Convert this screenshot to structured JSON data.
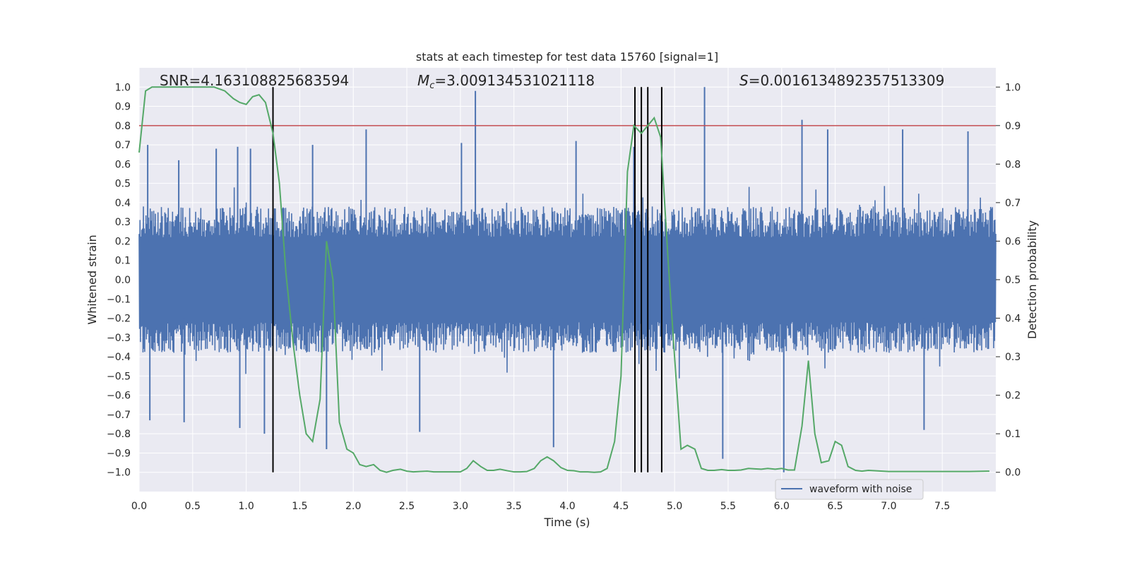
{
  "chart_data": {
    "type": "line",
    "title": "stats at each timestep for test data 15760 [signal=1]",
    "xlabel": "Time (s)",
    "ylabel_left": "Whitened strain",
    "ylabel_right": "Detection probability",
    "xlim": [
      0.0,
      8.0
    ],
    "ylim_left": [
      -1.1,
      1.1
    ],
    "ylim_right": [
      -0.05,
      1.05
    ],
    "x_ticks": [
      "0.0",
      "0.5",
      "1.0",
      "1.5",
      "2.0",
      "2.5",
      "3.0",
      "3.5",
      "4.0",
      "4.5",
      "5.0",
      "5.5",
      "6.0",
      "6.5",
      "7.0",
      "7.5"
    ],
    "y_ticks_left": [
      "1.0",
      "0.9",
      "0.8",
      "0.7",
      "0.6",
      "0.5",
      "0.4",
      "0.3",
      "0.2",
      "0.1",
      "0.0",
      "−0.1",
      "−0.2",
      "−0.3",
      "−0.4",
      "−0.5",
      "−0.6",
      "−0.7",
      "−0.8",
      "−0.9",
      "−1.0"
    ],
    "y_ticks_right": [
      "1.0",
      "0.9",
      "0.8",
      "0.7",
      "0.6",
      "0.5",
      "0.4",
      "0.3",
      "0.2",
      "0.1",
      "0.0"
    ],
    "grid": true,
    "legend_placement": "lower-right",
    "annotations": {
      "snr": "SNR=4.163108825683594",
      "mc_symbol": "M",
      "mc_sub": "c",
      "mc_value": "=3.009134531021118",
      "s_symbol": "S",
      "s_value": "=0.0016134892357513309"
    },
    "series": [
      {
        "name": "waveform with noise",
        "color": "#4c72b0",
        "description_values": "dense noisy strain signal, mostly within ±0.4, peaks near ±1.0",
        "peaks": [
          {
            "x": 0.08,
            "y": 0.7
          },
          {
            "x": 0.37,
            "y": 0.62
          },
          {
            "x": 0.72,
            "y": 0.68
          },
          {
            "x": 0.92,
            "y": 0.69
          },
          {
            "x": 1.04,
            "y": 0.68
          },
          {
            "x": 1.62,
            "y": 0.7
          },
          {
            "x": 2.12,
            "y": 0.78
          },
          {
            "x": 3.01,
            "y": 0.71
          },
          {
            "x": 3.14,
            "y": 0.98
          },
          {
            "x": 4.08,
            "y": 0.72
          },
          {
            "x": 4.62,
            "y": 0.69
          },
          {
            "x": 5.28,
            "y": 1.0
          },
          {
            "x": 6.19,
            "y": 0.83
          },
          {
            "x": 6.43,
            "y": 0.78
          },
          {
            "x": 7.13,
            "y": 0.78
          },
          {
            "x": 7.74,
            "y": 0.77
          }
        ],
        "troughs": [
          {
            "x": 0.1,
            "y": -0.73
          },
          {
            "x": 0.42,
            "y": -0.74
          },
          {
            "x": 0.94,
            "y": -0.77
          },
          {
            "x": 1.17,
            "y": -0.8
          },
          {
            "x": 1.75,
            "y": -0.88
          },
          {
            "x": 2.62,
            "y": -0.79
          },
          {
            "x": 3.87,
            "y": -0.87
          },
          {
            "x": 5.45,
            "y": -0.93
          },
          {
            "x": 6.02,
            "y": -1.0
          },
          {
            "x": 7.33,
            "y": -0.78
          }
        ]
      },
      {
        "name": "",
        "color": "#55a868",
        "axis": "right",
        "x": [
          0.0,
          0.06,
          0.12,
          0.2,
          0.3,
          0.4,
          0.5,
          0.6,
          0.7,
          0.8,
          0.88,
          0.94,
          1.0,
          1.06,
          1.12,
          1.18,
          1.25,
          1.31,
          1.37,
          1.44,
          1.5,
          1.56,
          1.62,
          1.69,
          1.75,
          1.81,
          1.87,
          1.94,
          2.0,
          2.06,
          2.12,
          2.19,
          2.25,
          2.31,
          2.37,
          2.44,
          2.5,
          2.56,
          2.62,
          2.69,
          2.75,
          2.81,
          2.87,
          2.94,
          3.0,
          3.06,
          3.12,
          3.19,
          3.25,
          3.31,
          3.37,
          3.44,
          3.5,
          3.56,
          3.62,
          3.69,
          3.75,
          3.81,
          3.87,
          3.94,
          4.0,
          4.06,
          4.12,
          4.19,
          4.25,
          4.31,
          4.37,
          4.44,
          4.5,
          4.56,
          4.62,
          4.69,
          4.75,
          4.81,
          4.87,
          4.94,
          5.0,
          5.06,
          5.12,
          5.19,
          5.25,
          5.31,
          5.37,
          5.44,
          5.5,
          5.56,
          5.62,
          5.69,
          5.75,
          5.81,
          5.87,
          5.94,
          6.0,
          6.06,
          6.12,
          6.19,
          6.25,
          6.31,
          6.37,
          6.44,
          6.5,
          6.56,
          6.62,
          6.69,
          6.75,
          6.81,
          6.87,
          6.94,
          7.0,
          7.12,
          7.25,
          7.5,
          7.75,
          7.94
        ],
        "y": [
          0.83,
          0.99,
          1.0,
          1.0,
          1.0,
          1.0,
          1.0,
          1.0,
          1.0,
          0.99,
          0.97,
          0.96,
          0.955,
          0.975,
          0.98,
          0.96,
          0.88,
          0.75,
          0.52,
          0.33,
          0.2,
          0.1,
          0.08,
          0.19,
          0.6,
          0.5,
          0.13,
          0.06,
          0.05,
          0.02,
          0.015,
          0.02,
          0.005,
          0.0,
          0.005,
          0.008,
          0.003,
          0.001,
          0.002,
          0.003,
          0.001,
          0.001,
          0.001,
          0.001,
          0.001,
          0.01,
          0.03,
          0.015,
          0.005,
          0.005,
          0.008,
          0.004,
          0.001,
          0.001,
          0.002,
          0.01,
          0.03,
          0.04,
          0.03,
          0.012,
          0.005,
          0.004,
          0.001,
          0.001,
          0.0,
          0.001,
          0.01,
          0.08,
          0.25,
          0.78,
          0.9,
          0.88,
          0.9,
          0.92,
          0.87,
          0.55,
          0.3,
          0.06,
          0.07,
          0.06,
          0.01,
          0.005,
          0.005,
          0.007,
          0.005,
          0.005,
          0.006,
          0.01,
          0.009,
          0.008,
          0.01,
          0.008,
          0.01,
          0.006,
          0.006,
          0.12,
          0.29,
          0.1,
          0.025,
          0.03,
          0.08,
          0.07,
          0.015,
          0.005,
          0.003,
          0.005,
          0.004,
          0.003,
          0.002,
          0.002,
          0.002,
          0.002,
          0.002,
          0.003
        ]
      }
    ],
    "hlines": [
      {
        "y_right": 0.9,
        "color": "#c44e52"
      }
    ],
    "vlines": [
      1.25,
      4.63,
      4.69,
      4.75,
      4.88
    ]
  }
}
